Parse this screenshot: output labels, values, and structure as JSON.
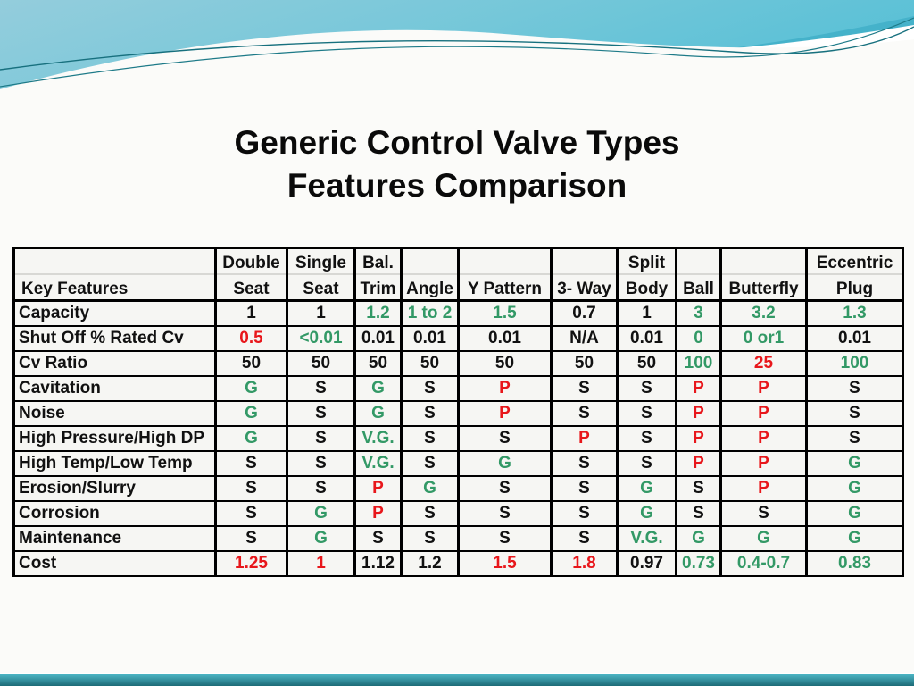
{
  "title": {
    "line1": "Generic Control Valve Types",
    "line2": "Features Comparison"
  },
  "colors": {
    "good_green": "#339966",
    "poor_red": "#e8171b",
    "neutral_black": "#111111",
    "wave_teal_light": "#94cddc",
    "wave_teal_deep": "#58c0d6",
    "footer_teal": "#2f8795"
  },
  "table": {
    "corner_label": "Key Features",
    "columns": [
      {
        "top": "Double",
        "bottom": "Seat"
      },
      {
        "top": "Single",
        "bottom": "Seat"
      },
      {
        "top": "Bal.",
        "bottom": "Trim"
      },
      {
        "top": "",
        "bottom": "Angle"
      },
      {
        "top": "",
        "bottom": "Y Pattern"
      },
      {
        "top": "",
        "bottom": "3- Way"
      },
      {
        "top": "Split",
        "bottom": "Body"
      },
      {
        "top": "",
        "bottom": "Ball"
      },
      {
        "top": "",
        "bottom": "Butterfly"
      },
      {
        "top": "Eccentric",
        "bottom": "Plug"
      }
    ],
    "rows": [
      {
        "label": "Capacity",
        "cells": [
          {
            "v": "1",
            "c": "k"
          },
          {
            "v": "1",
            "c": "k"
          },
          {
            "v": "1.2",
            "c": "g"
          },
          {
            "v": "1 to 2",
            "c": "g"
          },
          {
            "v": "1.5",
            "c": "g"
          },
          {
            "v": "0.7",
            "c": "k"
          },
          {
            "v": "1",
            "c": "k"
          },
          {
            "v": "3",
            "c": "g"
          },
          {
            "v": "3.2",
            "c": "g"
          },
          {
            "v": "1.3",
            "c": "g"
          }
        ]
      },
      {
        "label": "Shut Off % Rated Cv",
        "cells": [
          {
            "v": "0.5",
            "c": "r"
          },
          {
            "v": "<0.01",
            "c": "g"
          },
          {
            "v": "0.01",
            "c": "k"
          },
          {
            "v": "0.01",
            "c": "k"
          },
          {
            "v": "0.01",
            "c": "k"
          },
          {
            "v": "N/A",
            "c": "k"
          },
          {
            "v": "0.01",
            "c": "k"
          },
          {
            "v": "0",
            "c": "g"
          },
          {
            "v": "0 or1",
            "c": "g"
          },
          {
            "v": "0.01",
            "c": "k"
          }
        ]
      },
      {
        "label": "Cv Ratio",
        "cells": [
          {
            "v": "50",
            "c": "k"
          },
          {
            "v": "50",
            "c": "k"
          },
          {
            "v": "50",
            "c": "k"
          },
          {
            "v": "50",
            "c": "k"
          },
          {
            "v": "50",
            "c": "k"
          },
          {
            "v": "50",
            "c": "k"
          },
          {
            "v": "50",
            "c": "k"
          },
          {
            "v": "100",
            "c": "g"
          },
          {
            "v": "25",
            "c": "r"
          },
          {
            "v": "100",
            "c": "g"
          }
        ]
      },
      {
        "label": "Cavitation",
        "cells": [
          {
            "v": "G",
            "c": "g"
          },
          {
            "v": "S",
            "c": "k"
          },
          {
            "v": "G",
            "c": "g"
          },
          {
            "v": "S",
            "c": "k"
          },
          {
            "v": "P",
            "c": "r"
          },
          {
            "v": "S",
            "c": "k"
          },
          {
            "v": "S",
            "c": "k"
          },
          {
            "v": "P",
            "c": "r"
          },
          {
            "v": "P",
            "c": "r"
          },
          {
            "v": "S",
            "c": "k"
          }
        ]
      },
      {
        "label": "Noise",
        "cells": [
          {
            "v": "G",
            "c": "g"
          },
          {
            "v": "S",
            "c": "k"
          },
          {
            "v": "G",
            "c": "g"
          },
          {
            "v": "S",
            "c": "k"
          },
          {
            "v": "P",
            "c": "r"
          },
          {
            "v": "S",
            "c": "k"
          },
          {
            "v": "S",
            "c": "k"
          },
          {
            "v": "P",
            "c": "r"
          },
          {
            "v": "P",
            "c": "r"
          },
          {
            "v": "S",
            "c": "k"
          }
        ]
      },
      {
        "label": "High Pressure/High DP",
        "cells": [
          {
            "v": "G",
            "c": "g"
          },
          {
            "v": "S",
            "c": "k"
          },
          {
            "v": "V.G.",
            "c": "g"
          },
          {
            "v": "S",
            "c": "k"
          },
          {
            "v": "S",
            "c": "k"
          },
          {
            "v": "P",
            "c": "r"
          },
          {
            "v": "S",
            "c": "k"
          },
          {
            "v": "P",
            "c": "r"
          },
          {
            "v": "P",
            "c": "r"
          },
          {
            "v": "S",
            "c": "k"
          }
        ]
      },
      {
        "label": "High Temp/Low Temp",
        "cells": [
          {
            "v": "S",
            "c": "k"
          },
          {
            "v": "S",
            "c": "k"
          },
          {
            "v": "V.G.",
            "c": "g"
          },
          {
            "v": "S",
            "c": "k"
          },
          {
            "v": "G",
            "c": "g"
          },
          {
            "v": "S",
            "c": "k"
          },
          {
            "v": "S",
            "c": "k"
          },
          {
            "v": "P",
            "c": "r"
          },
          {
            "v": "P",
            "c": "r"
          },
          {
            "v": "G",
            "c": "g"
          }
        ]
      },
      {
        "label": "Erosion/Slurry",
        "cells": [
          {
            "v": "S",
            "c": "k"
          },
          {
            "v": "S",
            "c": "k"
          },
          {
            "v": "P",
            "c": "r"
          },
          {
            "v": "G",
            "c": "g"
          },
          {
            "v": "S",
            "c": "k"
          },
          {
            "v": "S",
            "c": "k"
          },
          {
            "v": "G",
            "c": "g"
          },
          {
            "v": "S",
            "c": "k"
          },
          {
            "v": "P",
            "c": "r"
          },
          {
            "v": "G",
            "c": "g"
          }
        ]
      },
      {
        "label": "Corrosion",
        "cells": [
          {
            "v": "S",
            "c": "k"
          },
          {
            "v": "G",
            "c": "g"
          },
          {
            "v": "P",
            "c": "r"
          },
          {
            "v": "S",
            "c": "k"
          },
          {
            "v": "S",
            "c": "k"
          },
          {
            "v": "S",
            "c": "k"
          },
          {
            "v": "G",
            "c": "g"
          },
          {
            "v": "S",
            "c": "k"
          },
          {
            "v": "S",
            "c": "k"
          },
          {
            "v": "G",
            "c": "g"
          }
        ]
      },
      {
        "label": "Maintenance",
        "cells": [
          {
            "v": "S",
            "c": "k"
          },
          {
            "v": "G",
            "c": "g"
          },
          {
            "v": "S",
            "c": "k"
          },
          {
            "v": "S",
            "c": "k"
          },
          {
            "v": "S",
            "c": "k"
          },
          {
            "v": "S",
            "c": "k"
          },
          {
            "v": "V.G.",
            "c": "g"
          },
          {
            "v": "G",
            "c": "g"
          },
          {
            "v": "G",
            "c": "g"
          },
          {
            "v": "G",
            "c": "g"
          }
        ]
      },
      {
        "label": "Cost",
        "cells": [
          {
            "v": "1.25",
            "c": "r"
          },
          {
            "v": "1",
            "c": "r"
          },
          {
            "v": "1.12",
            "c": "k"
          },
          {
            "v": "1.2",
            "c": "k"
          },
          {
            "v": "1.5",
            "c": "r"
          },
          {
            "v": "1.8",
            "c": "r"
          },
          {
            "v": "0.97",
            "c": "k"
          },
          {
            "v": "0.73",
            "c": "g"
          },
          {
            "v": "0.4-0.7",
            "c": "g"
          },
          {
            "v": "0.83",
            "c": "g"
          }
        ]
      }
    ]
  }
}
